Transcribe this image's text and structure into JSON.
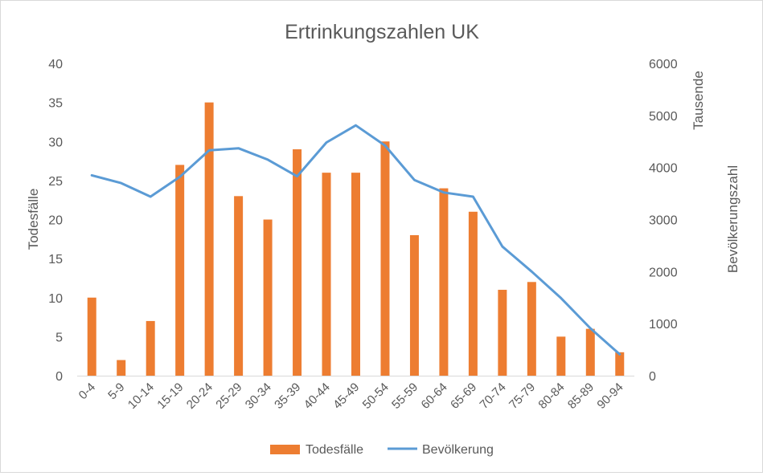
{
  "chart_data": {
    "type": "bar+line",
    "title": "Ertrinkungszahlen UK",
    "categories": [
      "0-4",
      "5-9",
      "10-14",
      "15-19",
      "20-24",
      "25-29",
      "30-34",
      "35-39",
      "40-44",
      "45-49",
      "50-54",
      "55-59",
      "60-64",
      "65-69",
      "70-74",
      "75-79",
      "80-84",
      "85-89",
      "90-94"
    ],
    "y_left": {
      "label": "Todesfälle",
      "range": [
        0,
        40
      ],
      "ticks": [
        "0",
        "5",
        "10",
        "15",
        "20",
        "25",
        "30",
        "35",
        "40"
      ]
    },
    "y_right": {
      "label": "Bevölkerungszahl",
      "unit_label": "Tausende",
      "range": [
        0,
        6000
      ],
      "ticks": [
        "0",
        "1000",
        "2000",
        "3000",
        "4000",
        "5000",
        "6000"
      ]
    },
    "series": [
      {
        "name": "Todesfälle",
        "type": "bar",
        "axis": "left",
        "color": "#ed7d31",
        "values": [
          10,
          2,
          7,
          27,
          35,
          23,
          20,
          29,
          26,
          26,
          30,
          18,
          24,
          21,
          11,
          12,
          5,
          6,
          3
        ]
      },
      {
        "name": "Bevölkerung",
        "type": "line",
        "axis": "right",
        "color": "#5b9bd5",
        "values": [
          3850,
          3700,
          3440,
          3820,
          4330,
          4370,
          4150,
          3830,
          4480,
          4810,
          4420,
          3760,
          3520,
          3440,
          2480,
          2000,
          1490,
          910,
          410
        ]
      }
    ],
    "legend_position": "bottom",
    "grid": false
  }
}
